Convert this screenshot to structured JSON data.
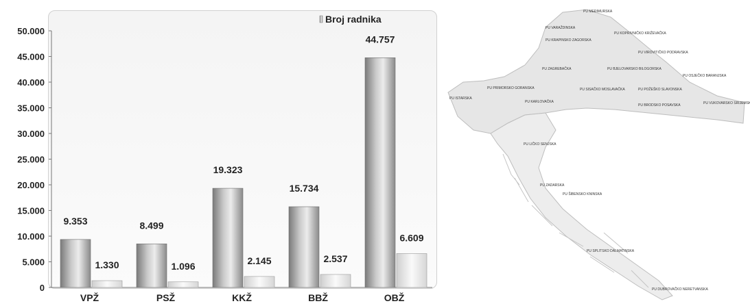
{
  "chart_data": {
    "type": "bar",
    "categories": [
      "VPŽ",
      "PSŽ",
      "KKŽ",
      "BBŽ",
      "OBŽ"
    ],
    "series": [
      {
        "name": "Broj radnika",
        "values": [
          9353,
          8499,
          19323,
          15734,
          44757
        ],
        "value_labels": [
          "9.353",
          "8.499",
          "19.323",
          "15.734",
          "44.757"
        ]
      },
      {
        "values": [
          1330,
          1096,
          2145,
          2537,
          6609
        ],
        "value_labels": [
          "1.330",
          "1.096",
          "2.145",
          "2.537",
          "6.609"
        ]
      }
    ],
    "ylim": [
      0,
      50000
    ],
    "yticks": [
      0,
      5000,
      10000,
      15000,
      20000,
      25000,
      30000,
      35000,
      40000,
      45000,
      50000
    ],
    "ytick_labels": [
      "0",
      "5.000",
      "10.000",
      "15.000",
      "20.000",
      "25.000",
      "30.000",
      "35.000",
      "40.000",
      "45.000",
      "50.000"
    ],
    "legend": {
      "placement": "top-right",
      "label": "Broj radnika"
    },
    "grid": false,
    "colors": {
      "bar_dark": "#8a8a8a",
      "bar_light": "#f2f2f2"
    }
  },
  "map": {
    "labels": [
      "PU MEĐIMURSKA",
      "PU VARAŽDINSKA",
      "PU KOPRIVNIČKO KRIŽEVAČKA",
      "PU KRAPINSKO ZAGORSKA",
      "PU VIROVITIČKO PODRAVSKA",
      "PU ZAGREBAČKA",
      "PU BJELOVARSKO BILOGORSKA",
      "PU OSJEČKO BARANJSKA",
      "PU PRIMORSKO GORANSKA",
      "PU SISAČKO MOSLAVAČKA",
      "PU POŽEŠKO SLAVONSKA",
      "PU ISTARSKA",
      "PU KARLOVAČKA",
      "PU BRODSKO POSAVSKA",
      "PU VUKOVARSKO SRIJEMSKA",
      "PU LIČKO SENJSKA",
      "PU ZADARSKA",
      "PU ŠIBENSKO KNINSKA",
      "PU SPLITSKO DALMATINSKA",
      "PU DUBROVAČKO NERETVANSKA"
    ]
  }
}
